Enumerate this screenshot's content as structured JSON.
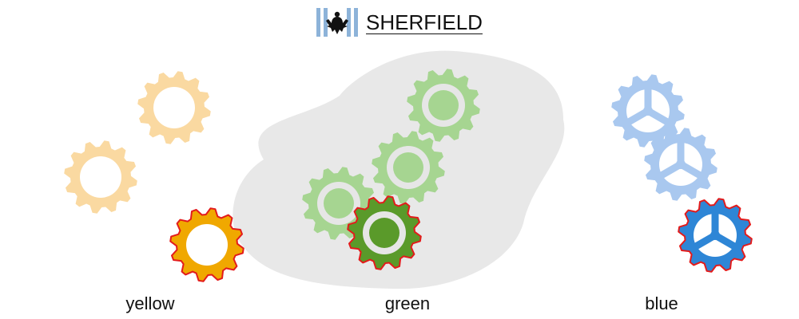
{
  "brand": {
    "name": "SHERFIELD",
    "logo_icon": "eagle-crest-icon",
    "stripe_color": "#8db3d9",
    "emblem_color": "#111111"
  },
  "groups": [
    {
      "label": "yellow",
      "light_color": "#fad9a1",
      "active_color": "#f0a800",
      "gear_style": "ring",
      "highlight_color": "#e31b1b"
    },
    {
      "label": "green",
      "light_color": "#a6d591",
      "active_color": "#5a9a2a",
      "gear_style": "ring-with-hub",
      "ring_color": "#e6e6e6",
      "highlight_color": "#e31b1b"
    },
    {
      "label": "blue",
      "light_color": "#a9c8ef",
      "active_color": "#2e86d6",
      "gear_style": "three-spoke",
      "highlight_color": "#e31b1b"
    }
  ],
  "cluster_background": "#e8e8e8"
}
